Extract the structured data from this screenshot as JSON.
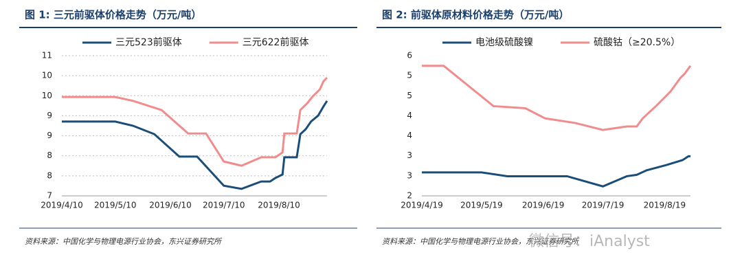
{
  "chart_data": [
    {
      "type": "line",
      "title": "图 1: 三元前驱体价格走势（万元/吨）",
      "source": "资料来源：中国化学与物理电源行业协会，东兴证券研究所",
      "xlim": [
        "2019/4/10",
        "2019/9/6"
      ],
      "xticks": [
        "2019/4/10",
        "2019/5/10",
        "2019/6/10",
        "2019/7/10",
        "2019/8/10"
      ],
      "ylim": [
        7,
        11
      ],
      "yticks": [
        7,
        {
          "value": 7.571,
          "label": "8"
        },
        {
          "value": 8.143,
          "label": "8"
        },
        {
          "value": 8.714,
          "label": "9"
        },
        {
          "value": 9.286,
          "label": "9"
        },
        {
          "value": 9.857,
          "label": "10"
        },
        {
          "value": 10.429,
          "label": "10"
        },
        11
      ],
      "grid": true,
      "legend": "top",
      "series": [
        {
          "name": "三元523前驱体",
          "color": "#1a4e78",
          "x": [
            "2019/4/10",
            "2019/5/10",
            "2019/5/20",
            "2019/6/1",
            "2019/6/15",
            "2019/6/25",
            "2019/7/10",
            "2019/7/20",
            "2019/7/31",
            "2019/8/5",
            "2019/8/8",
            "2019/8/12",
            "2019/8/13",
            "2019/8/20",
            "2019/8/22",
            "2019/8/25",
            "2019/8/28",
            "2019/9/1",
            "2019/9/4",
            "2019/9/6"
          ],
          "values": [
            9.12,
            9.12,
            9.0,
            8.76,
            8.12,
            8.12,
            7.29,
            7.2,
            7.41,
            7.41,
            7.51,
            7.61,
            8.1,
            8.1,
            8.76,
            8.9,
            9.12,
            9.29,
            9.55,
            9.71
          ]
        },
        {
          "name": "三元622前驱体",
          "color": "#f28b8b",
          "x": [
            "2019/4/10",
            "2019/5/10",
            "2019/5/20",
            "2019/6/5",
            "2019/6/20",
            "2019/6/30",
            "2019/7/10",
            "2019/7/20",
            "2019/7/31",
            "2019/8/8",
            "2019/8/12",
            "2019/8/13",
            "2019/8/20",
            "2019/8/22",
            "2019/8/26",
            "2019/8/29",
            "2019/9/2",
            "2019/9/4",
            "2019/9/6"
          ],
          "values": [
            9.82,
            9.82,
            9.71,
            9.45,
            8.78,
            8.78,
            7.98,
            7.86,
            8.1,
            8.1,
            8.24,
            8.78,
            8.78,
            9.45,
            9.65,
            9.84,
            10.04,
            10.27,
            10.37
          ]
        }
      ]
    },
    {
      "type": "line",
      "title": "图 2: 前驱体原材料价格走势（万元/吨）",
      "source": "资料来源：中国化学与物理电源行业协会，东兴证券研究所",
      "xlim": [
        "2019/4/19",
        "2019/9/1"
      ],
      "xticks": [
        "2019/4/19",
        "2019/5/19",
        "2019/6/19",
        "2019/7/19",
        "2019/8/19"
      ],
      "ylim": [
        2,
        6
      ],
      "yticks": [
        2,
        {
          "value": 2.571,
          "label": "3"
        },
        {
          "value": 3.143,
          "label": "3"
        },
        {
          "value": 3.714,
          "label": "4"
        },
        {
          "value": 4.286,
          "label": "4"
        },
        {
          "value": 4.857,
          "label": "5"
        },
        {
          "value": 5.429,
          "label": "5"
        },
        6
      ],
      "grid": false,
      "legend": "top",
      "series": [
        {
          "name": "电池级硫酸镍",
          "color": "#1a4e78",
          "x": [
            "2019/4/19",
            "2019/5/19",
            "2019/6/1",
            "2019/7/1",
            "2019/7/19",
            "2019/7/31",
            "2019/8/5",
            "2019/8/10",
            "2019/8/20",
            "2019/8/28",
            "2019/8/31",
            "2019/9/1"
          ],
          "values": [
            2.67,
            2.67,
            2.56,
            2.56,
            2.27,
            2.56,
            2.6,
            2.73,
            2.88,
            3.02,
            3.13,
            3.13
          ]
        },
        {
          "name": "硫酸钴（≥20.5%）",
          "color": "#f28b8b",
          "x": [
            "2019/4/19",
            "2019/4/30",
            "2019/5/25",
            "2019/6/10",
            "2019/6/20",
            "2019/7/5",
            "2019/7/19",
            "2019/7/31",
            "2019/8/5",
            "2019/8/8",
            "2019/8/15",
            "2019/8/22",
            "2019/8/27",
            "2019/8/29",
            "2019/9/1"
          ],
          "values": [
            5.71,
            5.71,
            4.56,
            4.5,
            4.21,
            4.08,
            3.88,
            3.98,
            3.98,
            4.21,
            4.58,
            4.98,
            5.37,
            5.48,
            5.71
          ]
        }
      ]
    }
  ],
  "watermark": "微信号：iAnalyst"
}
